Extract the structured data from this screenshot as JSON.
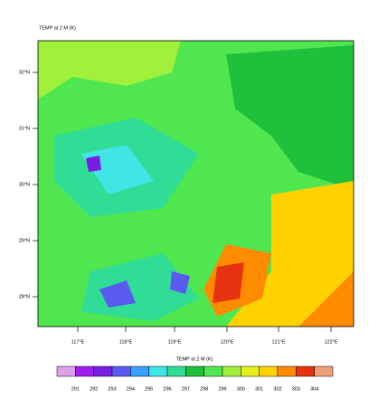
{
  "title": "TEMP at 2 M   (K)",
  "lat_labels": [
    "32°N",
    "31°N",
    "30°N",
    "29°N",
    "28°N"
  ],
  "lon_labels": [
    "117°E",
    "118°E",
    "119°E",
    "120°E",
    "121°E",
    "122°E"
  ],
  "colorbar": {
    "title": "TEMP at 2 M  (K)",
    "labels": [
      291,
      292,
      293,
      294,
      295,
      296,
      297,
      298,
      299,
      300,
      301,
      302,
      303,
      304
    ],
    "colors": [
      "#dca0ec",
      "#a01ef0",
      "#781ee0",
      "#5a5af0",
      "#3ca0ff",
      "#40e6e6",
      "#30dc96",
      "#1ec03c",
      "#50e650",
      "#a0f03c",
      "#e6f01e",
      "#ffd200",
      "#ff8c00",
      "#e6320f",
      "#f0a078"
    ]
  }
}
